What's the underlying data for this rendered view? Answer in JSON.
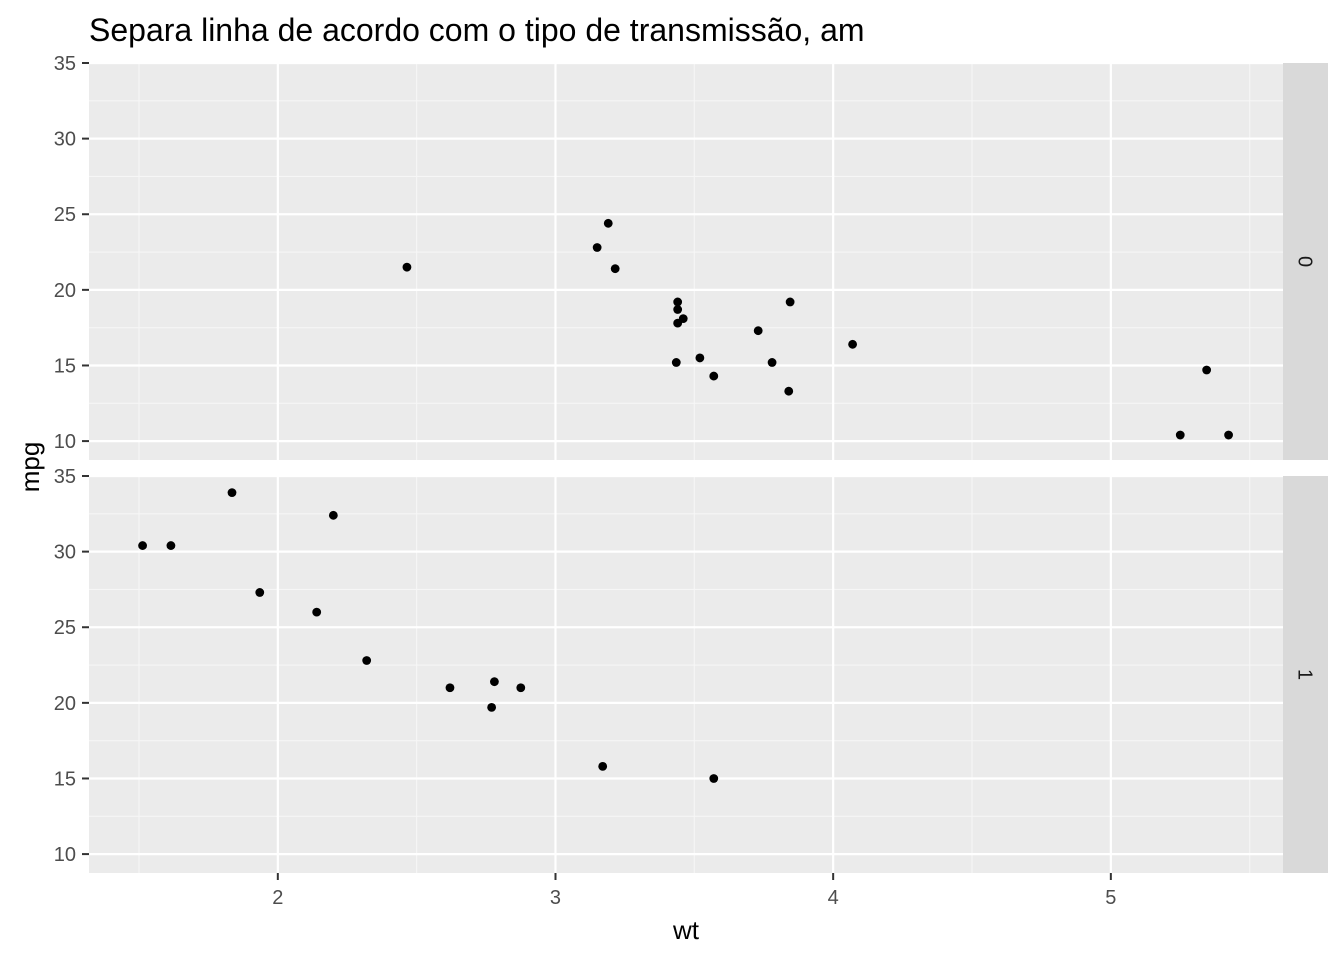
{
  "chart_data": {
    "type": "scatter",
    "title": "Separa linha de acordo com o tipo de transmissão, am",
    "xlabel": "wt",
    "ylabel": "mpg",
    "xlim": [
      1.32,
      5.62
    ],
    "ylim": [
      8.75,
      35.0
    ],
    "x_ticks": [
      2,
      3,
      4,
      5
    ],
    "y_ticks": [
      10,
      15,
      20,
      25,
      30,
      35
    ],
    "grid": true,
    "point_color": "#000000",
    "panel_bg": "#ebebeb",
    "strip_bg": "#d9d9d9",
    "panels": [
      {
        "label": "0",
        "points": [
          {
            "x": 3.215,
            "y": 21.4
          },
          {
            "x": 3.44,
            "y": 18.7
          },
          {
            "x": 3.46,
            "y": 18.1
          },
          {
            "x": 3.57,
            "y": 14.3
          },
          {
            "x": 3.19,
            "y": 24.4
          },
          {
            "x": 3.15,
            "y": 22.8
          },
          {
            "x": 3.44,
            "y": 19.2
          },
          {
            "x": 3.44,
            "y": 17.8
          },
          {
            "x": 4.07,
            "y": 16.4
          },
          {
            "x": 3.73,
            "y": 17.3
          },
          {
            "x": 3.78,
            "y": 15.2
          },
          {
            "x": 5.25,
            "y": 10.4
          },
          {
            "x": 5.424,
            "y": 10.4
          },
          {
            "x": 5.345,
            "y": 14.7
          },
          {
            "x": 2.465,
            "y": 21.5
          },
          {
            "x": 3.52,
            "y": 15.5
          },
          {
            "x": 3.435,
            "y": 15.2
          },
          {
            "x": 3.84,
            "y": 13.3
          },
          {
            "x": 3.845,
            "y": 19.2
          }
        ]
      },
      {
        "label": "1",
        "points": [
          {
            "x": 2.62,
            "y": 21.0
          },
          {
            "x": 2.875,
            "y": 21.0
          },
          {
            "x": 2.32,
            "y": 22.8
          },
          {
            "x": 2.2,
            "y": 32.4
          },
          {
            "x": 1.615,
            "y": 30.4
          },
          {
            "x": 1.835,
            "y": 33.9
          },
          {
            "x": 1.935,
            "y": 27.3
          },
          {
            "x": 2.14,
            "y": 26.0
          },
          {
            "x": 1.513,
            "y": 30.4
          },
          {
            "x": 3.17,
            "y": 15.8
          },
          {
            "x": 2.77,
            "y": 19.7
          },
          {
            "x": 3.57,
            "y": 15.0
          },
          {
            "x": 2.78,
            "y": 21.4
          }
        ]
      }
    ]
  }
}
